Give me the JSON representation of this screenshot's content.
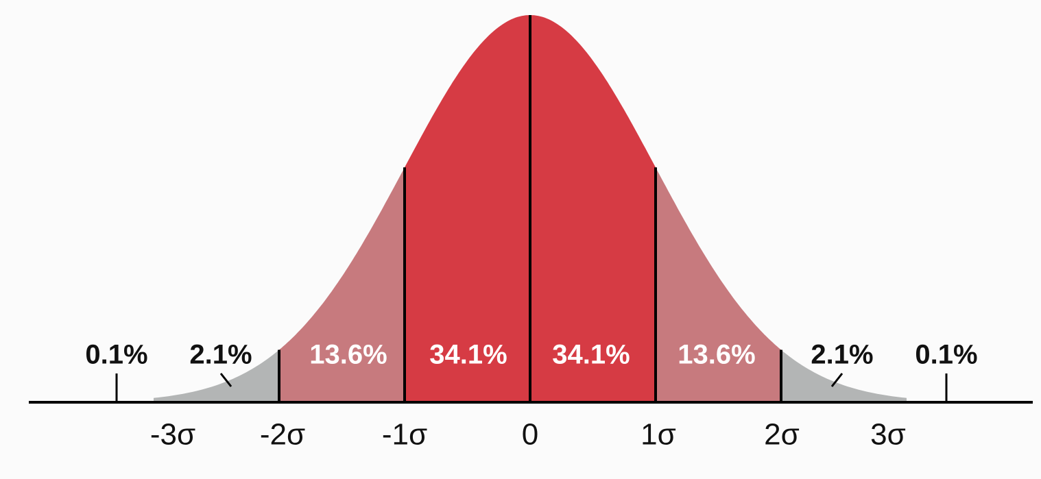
{
  "regions": [
    {
      "label": "0.1%"
    },
    {
      "label": "2.1%"
    },
    {
      "label": "13.6%"
    },
    {
      "label": "34.1%"
    },
    {
      "label": "34.1%"
    },
    {
      "label": "13.6%"
    },
    {
      "label": "2.1%"
    },
    {
      "label": "0.1%"
    }
  ],
  "axis_labels": [
    "-3σ",
    "-2σ",
    "-1σ",
    "0",
    "1σ",
    "2σ",
    "3σ"
  ]
}
